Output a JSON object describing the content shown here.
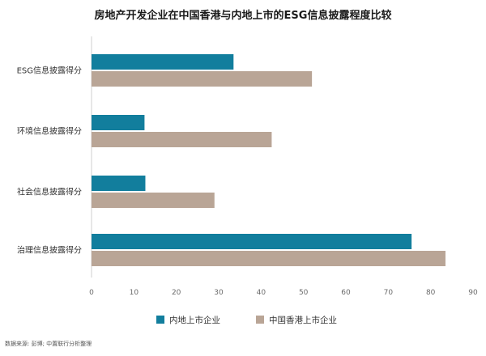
{
  "chart_data": {
    "type": "bar",
    "orientation": "horizontal",
    "title": "房地产开发企业在中国香港与内地上市的ESG信息披露程度比较",
    "categories": [
      "ESG信息披露得分",
      "环境信息披露得分",
      "社会信息披露得分",
      "治理信息披露得分"
    ],
    "series": [
      {
        "name": "内地上市企业",
        "color": "#127e9d",
        "values": [
          33.5,
          12.5,
          12.7,
          75.5
        ]
      },
      {
        "name": "中国香港上市企业",
        "color": "#b9a596",
        "values": [
          52,
          42.5,
          29,
          83.5
        ]
      }
    ],
    "xlim": [
      0,
      90
    ],
    "xticks": [
      0,
      10,
      20,
      30,
      40,
      50,
      60,
      70,
      80,
      90
    ],
    "grid": false,
    "legend_position": "bottom",
    "source": "数据来源: 彭博; 中置联行分析整理"
  }
}
